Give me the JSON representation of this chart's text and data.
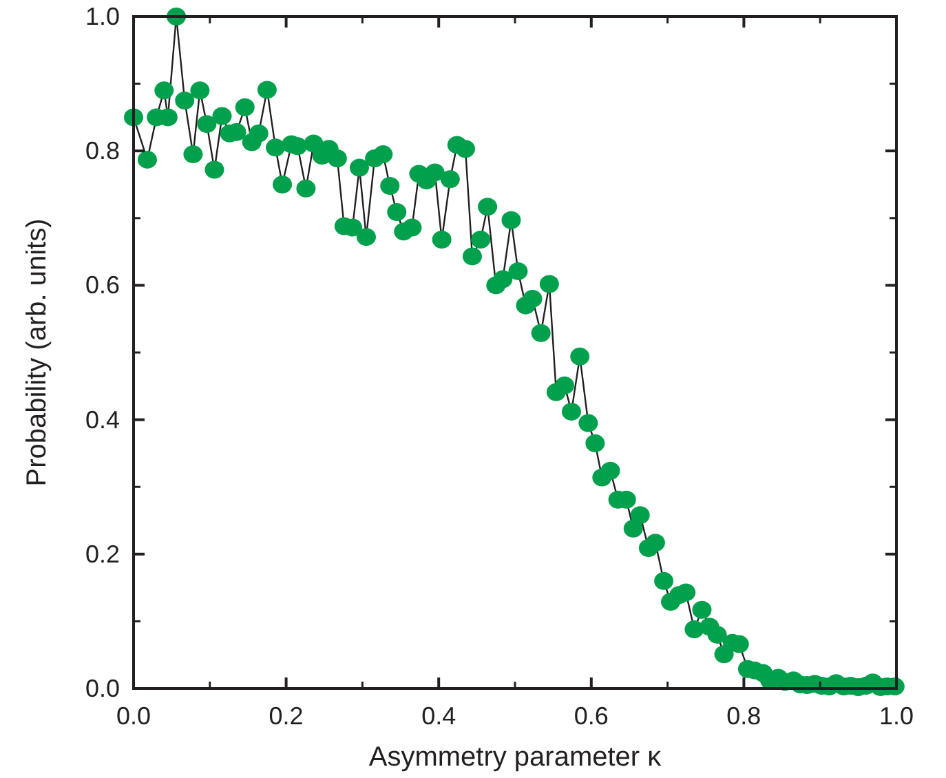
{
  "chart_data": {
    "type": "line",
    "xlabel": "Asymmetry parameter κ",
    "ylabel": "Probability (arb. units)",
    "x": [
      0.0,
      0.018,
      0.03,
      0.04,
      0.045,
      0.056,
      0.067,
      0.078,
      0.087,
      0.096,
      0.106,
      0.116,
      0.126,
      0.135,
      0.146,
      0.155,
      0.164,
      0.175,
      0.186,
      0.195,
      0.207,
      0.215,
      0.226,
      0.236,
      0.247,
      0.256,
      0.267,
      0.276,
      0.287,
      0.296,
      0.305,
      0.316,
      0.327,
      0.336,
      0.345,
      0.354,
      0.365,
      0.374,
      0.384,
      0.395,
      0.404,
      0.415,
      0.424,
      0.435,
      0.444,
      0.455,
      0.464,
      0.475,
      0.484,
      0.495,
      0.504,
      0.514,
      0.523,
      0.534,
      0.545,
      0.554,
      0.565,
      0.574,
      0.585,
      0.596,
      0.605,
      0.614,
      0.625,
      0.635,
      0.646,
      0.655,
      0.664,
      0.675,
      0.684,
      0.695,
      0.704,
      0.715,
      0.724,
      0.735,
      0.745,
      0.755,
      0.765,
      0.774,
      0.785,
      0.794,
      0.805,
      0.814,
      0.825,
      0.834,
      0.845,
      0.854,
      0.865,
      0.874,
      0.883,
      0.893,
      0.902,
      0.912,
      0.921,
      0.931,
      0.94,
      0.95,
      0.96,
      0.969,
      0.979,
      0.988,
      0.998
    ],
    "series": [
      {
        "color": "#00a04c",
        "values": [
          0.85,
          0.787,
          0.85,
          0.89,
          0.85,
          1.0,
          0.875,
          0.795,
          0.89,
          0.84,
          0.772,
          0.852,
          0.826,
          0.828,
          0.865,
          0.813,
          0.826,
          0.891,
          0.805,
          0.75,
          0.81,
          0.807,
          0.744,
          0.811,
          0.793,
          0.803,
          0.789,
          0.688,
          0.686,
          0.775,
          0.672,
          0.789,
          0.795,
          0.748,
          0.709,
          0.68,
          0.686,
          0.766,
          0.756,
          0.768,
          0.668,
          0.758,
          0.809,
          0.803,
          0.643,
          0.668,
          0.717,
          0.6,
          0.609,
          0.697,
          0.621,
          0.57,
          0.58,
          0.529,
          0.602,
          0.441,
          0.451,
          0.412,
          0.494,
          0.395,
          0.365,
          0.314,
          0.324,
          0.281,
          0.281,
          0.238,
          0.258,
          0.209,
          0.217,
          0.16,
          0.129,
          0.139,
          0.143,
          0.088,
          0.117,
          0.092,
          0.08,
          0.051,
          0.068,
          0.066,
          0.029,
          0.027,
          0.023,
          0.012,
          0.016,
          0.01,
          0.012,
          0.006,
          0.005,
          0.007,
          0.004,
          0.003,
          0.008,
          0.003,
          0.004,
          0.002,
          0.004,
          0.009,
          0.002,
          0.003,
          0.003
        ]
      }
    ],
    "xlim": [
      0,
      1
    ],
    "ylim": [
      0,
      1
    ],
    "xticks": [
      {
        "value": 0,
        "label": "0.0"
      },
      {
        "value": 0.2,
        "label": "0.2"
      },
      {
        "value": 0.4,
        "label": "0.4"
      },
      {
        "value": 0.6,
        "label": "0.6"
      },
      {
        "value": 0.8,
        "label": "0.8"
      },
      {
        "value": 1,
        "label": "1.0"
      }
    ],
    "yticks": [
      {
        "value": 0,
        "label": "0.0"
      },
      {
        "value": 0.2,
        "label": "0.2"
      },
      {
        "value": 0.4,
        "label": "0.4"
      },
      {
        "value": 0.6,
        "label": "0.6"
      },
      {
        "value": 0.8,
        "label": "0.8"
      },
      {
        "value": 1,
        "label": "1.0"
      }
    ],
    "marker": "circle",
    "line_style": "solid",
    "grid": false
  }
}
